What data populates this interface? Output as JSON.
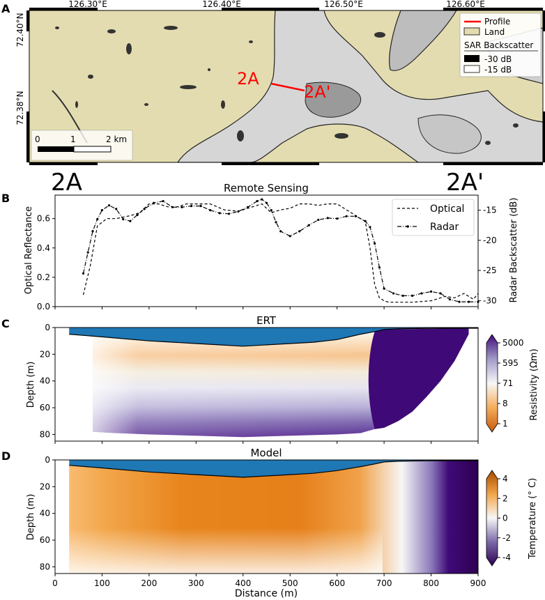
{
  "panel_a": {
    "letter": "A",
    "lon_ticks": [
      "126.30°E",
      "126.40°E",
      "126.50°E",
      "126.60°E"
    ],
    "lat_ticks": [
      "72.40°N",
      "72.38°N"
    ],
    "profile_label_start": "2A",
    "profile_label_end": "2A'",
    "scalebar": {
      "labels": [
        "0",
        "1",
        "2 km"
      ]
    },
    "legend": {
      "profile": "Profile",
      "land": "Land",
      "sar_title": "SAR Backscatter",
      "sar_low": "-30 dB",
      "sar_high": "-15 dB"
    },
    "colors": {
      "land": "#e3dcb0",
      "profile": "#ff0000"
    }
  },
  "profile_end_labels": {
    "left": "2A",
    "right": "2A'"
  },
  "chart_data": [
    {
      "panel": "B",
      "type": "line",
      "title": "Remote Sensing",
      "xlim": [
        0,
        900
      ],
      "ylabel": "Optical Reflectance",
      "ylim": [
        0,
        0.76
      ],
      "yticks": [
        0.0,
        0.2,
        0.4,
        0.6
      ],
      "y2label": "Radar Backscatter (dB)",
      "y2lim": [
        -31,
        -12.5
      ],
      "y2ticks": [
        -30,
        -25,
        -20,
        -15
      ],
      "legend_position": "top-right",
      "series": [
        {
          "name": "Optical",
          "axis": "left",
          "style": "dashed",
          "x": [
            60,
            75,
            90,
            110,
            130,
            160,
            180,
            200,
            220,
            240,
            260,
            280,
            300,
            330,
            360,
            390,
            420,
            440,
            460,
            480,
            500,
            520,
            540,
            560,
            580,
            600,
            620,
            640,
            660,
            670,
            680,
            690,
            700,
            710,
            730,
            760,
            800,
            830,
            850,
            870,
            890,
            900
          ],
          "y": [
            0.08,
            0.28,
            0.55,
            0.6,
            0.6,
            0.62,
            0.64,
            0.7,
            0.7,
            0.68,
            0.68,
            0.7,
            0.7,
            0.7,
            0.66,
            0.65,
            0.68,
            0.7,
            0.64,
            0.66,
            0.67,
            0.7,
            0.7,
            0.69,
            0.7,
            0.7,
            0.66,
            0.62,
            0.58,
            0.4,
            0.15,
            0.06,
            0.04,
            0.03,
            0.03,
            0.03,
            0.04,
            0.07,
            0.06,
            0.09,
            0.05,
            0.09
          ]
        },
        {
          "name": "Radar",
          "axis": "right",
          "style": "dash-dot-markers",
          "x": [
            60,
            70,
            80,
            90,
            100,
            115,
            130,
            145,
            160,
            175,
            190,
            210,
            230,
            250,
            270,
            290,
            310,
            330,
            350,
            370,
            390,
            410,
            430,
            440,
            450,
            460,
            470,
            480,
            500,
            520,
            540,
            560,
            580,
            600,
            620,
            640,
            660,
            670,
            680,
            690,
            700,
            720,
            740,
            760,
            780,
            800,
            820,
            840,
            860,
            880,
            900
          ],
          "y": [
            -25.5,
            -22,
            -18.5,
            -16.5,
            -15,
            -14.2,
            -14.8,
            -16.5,
            -16.8,
            -15.8,
            -14.8,
            -13.8,
            -13.5,
            -14.5,
            -14.5,
            -14.3,
            -14.3,
            -15.0,
            -15.5,
            -15.6,
            -15.2,
            -14.5,
            -13.5,
            -13.2,
            -13.8,
            -15.0,
            -17.0,
            -18.5,
            -19.3,
            -18.5,
            -17.5,
            -16.6,
            -16.3,
            -16.4,
            -16.0,
            -16.0,
            -16.8,
            -17.8,
            -20.5,
            -24.5,
            -28.0,
            -28.8,
            -29.2,
            -29.2,
            -28.8,
            -28.5,
            -28.8,
            -29.8,
            -30.2,
            -30.2,
            -30.2
          ]
        }
      ]
    },
    {
      "panel": "C",
      "type": "heatmap",
      "title": "ERT",
      "ylabel": "Depth (m)",
      "xlim": [
        0,
        900
      ],
      "ylim": [
        85,
        0
      ],
      "yticks": [
        0,
        20,
        40,
        60,
        80
      ],
      "colorbar": {
        "label": "Resistivity (Ωm)",
        "ticks": [
          "5000",
          "595",
          "71",
          "8",
          "1"
        ],
        "scale": "log",
        "range": [
          1,
          5000
        ],
        "colors": [
          "#c8590a",
          "#f5ad5d",
          "#f7f7f7",
          "#a09ac8",
          "#3f0a77"
        ]
      },
      "surface_depth": {
        "x": [
          30,
          100,
          200,
          300,
          350,
          400,
          450,
          500,
          550,
          600,
          650,
          680,
          700,
          730,
          760,
          800,
          850,
          900
        ],
        "y": [
          5,
          7,
          10,
          12,
          13,
          14,
          13,
          12,
          11,
          9,
          5,
          3,
          1.5,
          1,
          0.8,
          0.6,
          0.5,
          0.5
        ]
      },
      "bottom_depth": {
        "x": [
          80,
          130,
          200,
          300,
          400,
          500,
          600,
          650,
          680,
          700,
          730,
          760,
          790,
          820,
          850,
          880
        ],
        "y": [
          78,
          79,
          80,
          81,
          82,
          81,
          80,
          79,
          76,
          75,
          70,
          63,
          52,
          40,
          25,
          5
        ]
      },
      "water_color": "#1f77b4"
    },
    {
      "panel": "D",
      "type": "heatmap",
      "title": "Model",
      "ylabel": "Depth (m)",
      "xlabel": "Distance (m)",
      "xlim": [
        0,
        900
      ],
      "xticks": [
        0,
        100,
        200,
        300,
        400,
        500,
        600,
        700,
        800,
        900
      ],
      "ylim": [
        85,
        0
      ],
      "yticks": [
        0,
        20,
        40,
        60,
        80
      ],
      "colorbar": {
        "label": "Temperature (° C)",
        "ticks": [
          "4",
          "2",
          "0",
          "-2",
          "-4"
        ],
        "range": [
          -4,
          4
        ],
        "colors": [
          "#2d0051",
          "#7b68a8",
          "#f7f7f7",
          "#f2a64a",
          "#a84a00"
        ]
      },
      "surface_depth": {
        "x": [
          30,
          100,
          200,
          300,
          350,
          400,
          450,
          500,
          550,
          600,
          650,
          680,
          700,
          730,
          760,
          800,
          850,
          900
        ],
        "y": [
          4,
          6,
          9,
          11,
          12,
          13,
          12,
          11,
          10,
          8,
          5,
          3,
          1.5,
          1,
          0.8,
          0.6,
          0.5,
          0.5
        ]
      },
      "water_color": "#1f77b4"
    }
  ]
}
